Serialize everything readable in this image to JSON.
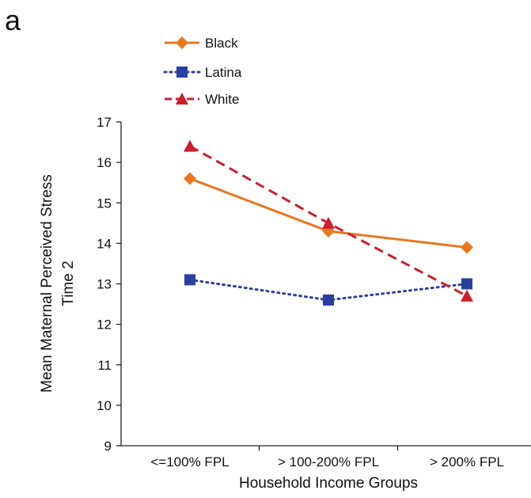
{
  "panel_label": "a",
  "chart_data": {
    "type": "line",
    "title": "",
    "xlabel": "Household Income Groups",
    "ylabel_lines": [
      "Mean Maternal Perceived Stress",
      "Time 2"
    ],
    "categories": [
      "<=100% FPL",
      "> 100-200% FPL",
      "> 200% FPL"
    ],
    "ylim": [
      9,
      17
    ],
    "yticks": [
      9,
      10,
      11,
      12,
      13,
      14,
      15,
      16,
      17
    ],
    "grid": false,
    "legend_position": "top-left",
    "series": [
      {
        "name": "Black",
        "values": [
          15.6,
          14.3,
          13.9
        ],
        "color": "#E87722",
        "line_style": "solid",
        "marker": "diamond"
      },
      {
        "name": "Latina",
        "values": [
          13.1,
          12.6,
          13.0
        ],
        "color": "#2A3F9E",
        "line_style": "dotted",
        "marker": "square"
      },
      {
        "name": "White",
        "values": [
          16.4,
          14.5,
          12.7
        ],
        "color": "#C8202F",
        "line_style": "dashed",
        "marker": "triangle"
      }
    ]
  }
}
